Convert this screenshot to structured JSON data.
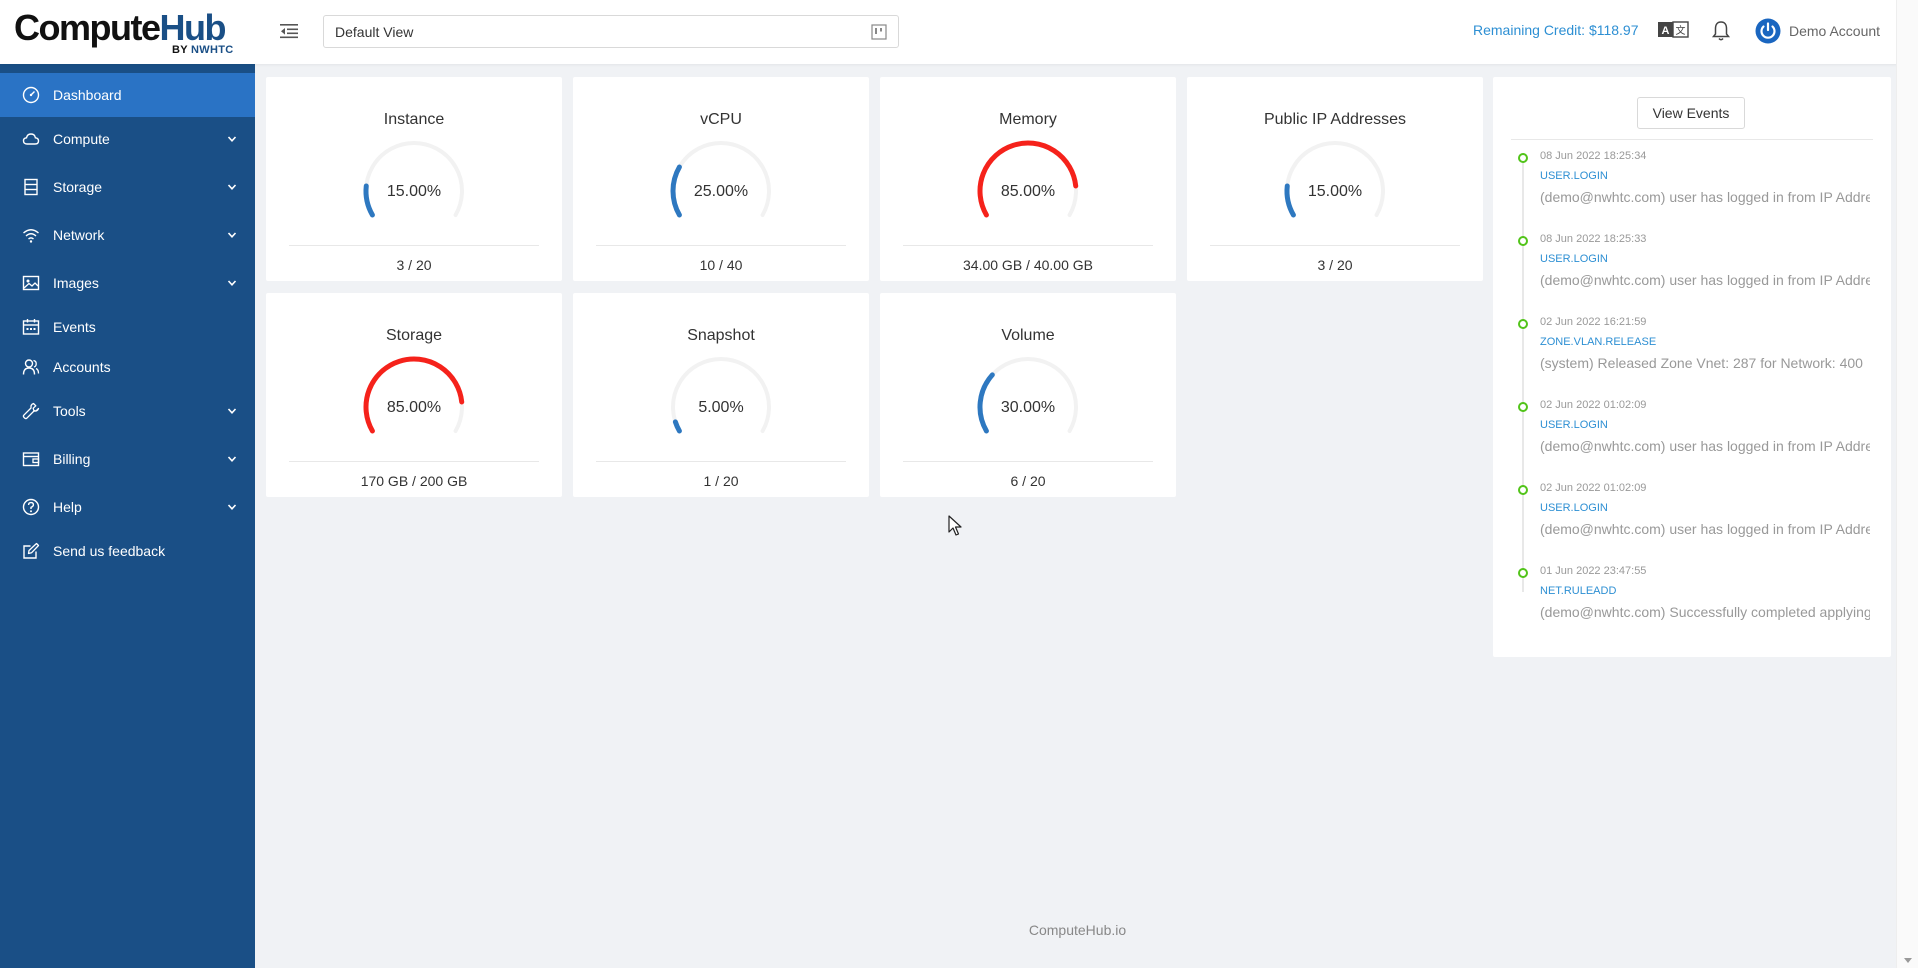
{
  "logo": {
    "main_a": "Compute",
    "main_b": "Hub",
    "sub_a": "BY ",
    "sub_b": "NWHTC"
  },
  "header": {
    "view_select": "Default View",
    "credit": "Remaining Credit: $118.97",
    "account": "Demo Account"
  },
  "sidebar": {
    "items": [
      {
        "label": "Dashboard",
        "icon": "dashboard-icon",
        "active": true,
        "chevron": false
      },
      {
        "label": "Compute",
        "icon": "cloud-icon",
        "chevron": true
      },
      {
        "label": "Storage",
        "icon": "database-icon",
        "chevron": true
      },
      {
        "label": "Network",
        "icon": "wifi-icon",
        "chevron": true
      },
      {
        "label": "Images",
        "icon": "picture-icon",
        "chevron": true
      },
      {
        "label": "Events",
        "icon": "calendar-icon",
        "chevron": false
      },
      {
        "label": "Accounts",
        "icon": "team-icon",
        "chevron": false
      },
      {
        "label": "Tools",
        "icon": "tool-icon",
        "chevron": true
      },
      {
        "label": "Billing",
        "icon": "wallet-icon",
        "chevron": true
      },
      {
        "label": "Help",
        "icon": "question-icon",
        "chevron": true
      },
      {
        "label": "Send us feedback",
        "icon": "edit-icon",
        "chevron": false
      }
    ]
  },
  "cards": [
    {
      "title": "Instance",
      "percent_label": "15.00%",
      "percent": 15,
      "usage": "3 / 20",
      "color": "#2e78c0"
    },
    {
      "title": "vCPU",
      "percent_label": "25.00%",
      "percent": 25,
      "usage": "10 / 40",
      "color": "#2e78c0"
    },
    {
      "title": "Memory",
      "percent_label": "85.00%",
      "percent": 85,
      "usage": "34.00 GB / 40.00 GB",
      "color": "#f5221b"
    },
    {
      "title": "Public IP Addresses",
      "percent_label": "15.00%",
      "percent": 15,
      "usage": "3 / 20",
      "color": "#2e78c0"
    },
    {
      "title": "Storage",
      "percent_label": "85.00%",
      "percent": 85,
      "usage": "170 GB / 200 GB",
      "color": "#f5221b"
    },
    {
      "title": "Snapshot",
      "percent_label": "5.00%",
      "percent": 5,
      "usage": "1 / 20",
      "color": "#2e78c0"
    },
    {
      "title": "Volume",
      "percent_label": "30.00%",
      "percent": 30,
      "usage": "6 / 20",
      "color": "#2e78c0"
    }
  ],
  "events": {
    "button_label": "View Events",
    "items": [
      {
        "time": "08 Jun 2022 18:25:34",
        "type": "USER.LOGIN",
        "desc": "(demo@nwhtc.com) user has logged in from IP Addre"
      },
      {
        "time": "08 Jun 2022 18:25:33",
        "type": "USER.LOGIN",
        "desc": "(demo@nwhtc.com) user has logged in from IP Addre"
      },
      {
        "time": "02 Jun 2022 16:21:59",
        "type": "ZONE.VLAN.RELEASE",
        "desc": "(system) Released Zone Vnet: 287 for Network: 400"
      },
      {
        "time": "02 Jun 2022 01:02:09",
        "type": "USER.LOGIN",
        "desc": "(demo@nwhtc.com) user has logged in from IP Addre"
      },
      {
        "time": "02 Jun 2022 01:02:09",
        "type": "USER.LOGIN",
        "desc": "(demo@nwhtc.com) user has logged in from IP Addre"
      },
      {
        "time": "01 Jun 2022 23:47:55",
        "type": "NET.RULEADD",
        "desc": "(demo@nwhtc.com) Successfully completed applying"
      }
    ]
  },
  "footer": "ComputeHub.io"
}
